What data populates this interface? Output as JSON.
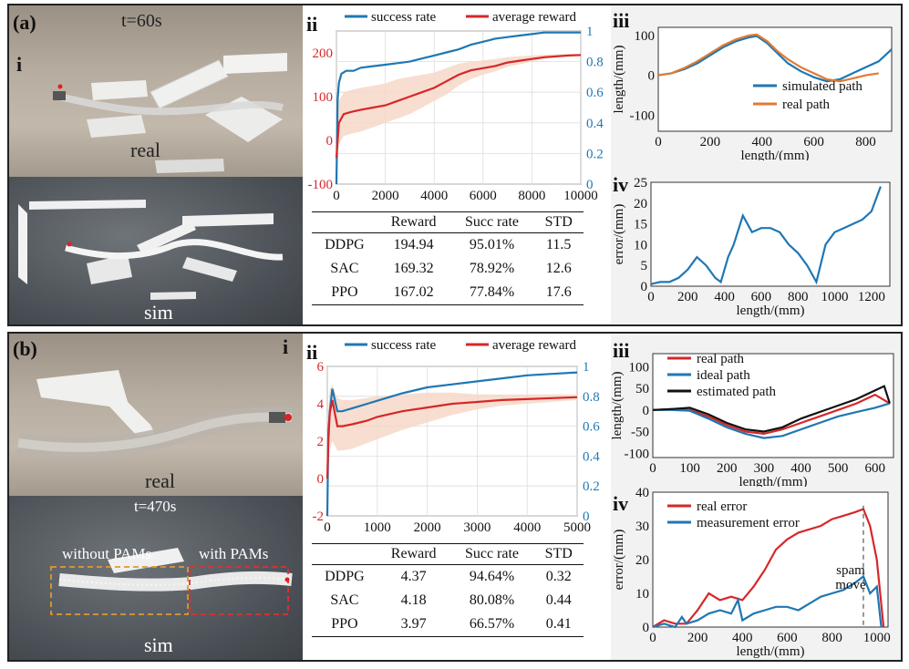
{
  "panel_a": {
    "label": "(a)",
    "time": "t=60s",
    "sub_i": "i",
    "real_label": "real",
    "sim_label": "sim",
    "sub_ii": "ii",
    "sub_iii": "iii",
    "sub_iv": "iv",
    "table": {
      "headers": [
        "",
        "Reward",
        "Succ rate",
        "STD"
      ],
      "rows": [
        [
          "DDPG",
          "194.94",
          "95.01%",
          "11.5"
        ],
        [
          "SAC",
          "169.32",
          "78.92%",
          "12.6"
        ],
        [
          "PPO",
          "167.02",
          "77.84%",
          "17.6"
        ]
      ]
    }
  },
  "panel_b": {
    "label": "(b)",
    "time": "t=470s",
    "sub_i": "i",
    "real_label": "real",
    "sim_label": "sim",
    "without_pams": "without PAMs",
    "with_pams": "with PAMs",
    "sub_ii": "ii",
    "sub_iii": "iii",
    "sub_iv": "iv",
    "table": {
      "headers": [
        "",
        "Reward",
        "Succ rate",
        "STD"
      ],
      "rows": [
        [
          "DDPG",
          "4.37",
          "94.64%",
          "0.32"
        ],
        [
          "SAC",
          "4.18",
          "80.08%",
          "0.44"
        ],
        [
          "PPO",
          "3.97",
          "66.57%",
          "0.41"
        ]
      ]
    }
  },
  "colors": {
    "blue": "#1f77b4",
    "red": "#d62728",
    "orange": "#e07b32",
    "black": "#111111",
    "band": "#f6d8c8"
  },
  "chart_data": [
    {
      "id": "a_ii",
      "type": "line",
      "title": "",
      "legend": [
        "success rate",
        "average reward"
      ],
      "xlim": [
        0,
        10000
      ],
      "xticks": [
        0,
        2000,
        4000,
        6000,
        8000,
        10000
      ],
      "ylim_left": [
        -100,
        250
      ],
      "yticks_left": [
        -100,
        0,
        100,
        200
      ],
      "ylim_right": [
        0,
        1.0
      ],
      "yticks_right": [
        0,
        0.2,
        0.4,
        0.6,
        0.8,
        1
      ],
      "series": [
        {
          "name": "success rate",
          "axis": "right",
          "x": [
            0,
            50,
            100,
            200,
            400,
            700,
            1000,
            1500,
            2000,
            2500,
            3000,
            3500,
            4000,
            4500,
            5000,
            5500,
            6000,
            6500,
            7000,
            7500,
            8000,
            8500,
            9000,
            9500,
            10000
          ],
          "y": [
            0.0,
            0.55,
            0.66,
            0.72,
            0.74,
            0.74,
            0.76,
            0.77,
            0.78,
            0.79,
            0.8,
            0.82,
            0.84,
            0.86,
            0.88,
            0.91,
            0.93,
            0.95,
            0.96,
            0.97,
            0.98,
            0.99,
            0.99,
            0.99,
            0.99
          ]
        },
        {
          "name": "average reward",
          "axis": "left",
          "x": [
            0,
            100,
            300,
            600,
            1000,
            1500,
            2000,
            2500,
            3000,
            3500,
            4000,
            4500,
            5000,
            5500,
            6000,
            6500,
            7000,
            7500,
            8000,
            8500,
            9000,
            9500,
            10000
          ],
          "y": [
            -40,
            40,
            60,
            65,
            70,
            75,
            80,
            90,
            100,
            110,
            120,
            135,
            150,
            160,
            165,
            170,
            178,
            182,
            186,
            190,
            192,
            194,
            195
          ],
          "band_low": [
            -90,
            -10,
            10,
            15,
            20,
            30,
            40,
            50,
            60,
            75,
            90,
            105,
            125,
            140,
            150,
            158,
            168,
            174,
            180,
            186,
            189,
            192,
            193
          ],
          "band_high": [
            10,
            90,
            110,
            115,
            120,
            125,
            130,
            140,
            145,
            150,
            155,
            165,
            175,
            180,
            183,
            186,
            190,
            192,
            194,
            196,
            197,
            197,
            198
          ]
        }
      ]
    },
    {
      "id": "a_iii",
      "type": "line",
      "ylabel": "length/(mm)",
      "xlabel": "length/(mm)",
      "legend": [
        "simulated path",
        "real path"
      ],
      "xlim": [
        0,
        900
      ],
      "xticks": [
        0,
        200,
        400,
        600,
        800
      ],
      "ylim": [
        -140,
        120
      ],
      "yticks": [
        -100,
        0,
        100
      ],
      "series": [
        {
          "name": "simulated path",
          "x": [
            0,
            50,
            100,
            150,
            200,
            250,
            300,
            350,
            380,
            420,
            460,
            500,
            550,
            600,
            650,
            700,
            750,
            800,
            850,
            900
          ],
          "y": [
            0,
            5,
            15,
            30,
            50,
            70,
            85,
            95,
            98,
            80,
            55,
            30,
            10,
            -5,
            -15,
            -10,
            5,
            20,
            35,
            65
          ]
        },
        {
          "name": "real path",
          "x": [
            0,
            50,
            100,
            150,
            200,
            250,
            300,
            350,
            380,
            420,
            460,
            500,
            550,
            600,
            650,
            700,
            750,
            800,
            850
          ],
          "y": [
            0,
            5,
            18,
            35,
            55,
            75,
            90,
            100,
            102,
            85,
            60,
            40,
            20,
            5,
            -10,
            -15,
            -8,
            0,
            5
          ]
        }
      ]
    },
    {
      "id": "a_iv",
      "type": "line",
      "ylabel": "error/(mm)",
      "xlabel": "length/(mm)",
      "xlim": [
        0,
        1300
      ],
      "xticks": [
        0,
        200,
        400,
        600,
        800,
        1000,
        1200
      ],
      "ylim": [
        0,
        25
      ],
      "yticks": [
        0,
        5,
        10,
        15,
        20,
        25
      ],
      "series": [
        {
          "name": "error",
          "x": [
            0,
            50,
            100,
            150,
            200,
            250,
            300,
            350,
            380,
            420,
            450,
            500,
            550,
            600,
            650,
            700,
            750,
            800,
            850,
            900,
            950,
            1000,
            1050,
            1100,
            1150,
            1200,
            1250
          ],
          "y": [
            0.5,
            1,
            1,
            2,
            4,
            7,
            5,
            2,
            1,
            7,
            10,
            17,
            13,
            14,
            14,
            13,
            10,
            8,
            5,
            1,
            10,
            13,
            14,
            15,
            16,
            18,
            24
          ]
        }
      ]
    },
    {
      "id": "b_ii",
      "type": "line",
      "legend": [
        "success rate",
        "average reward"
      ],
      "xlim": [
        0,
        5000
      ],
      "xticks": [
        0,
        1000,
        2000,
        3000,
        4000,
        5000
      ],
      "ylim_left": [
        -2,
        6
      ],
      "yticks_left": [
        -2,
        0,
        2,
        4,
        6
      ],
      "ylim_right": [
        0,
        1.0
      ],
      "yticks_right": [
        0,
        0.2,
        0.4,
        0.6,
        0.8,
        1.0
      ],
      "series": [
        {
          "name": "success rate",
          "axis": "right",
          "x": [
            0,
            20,
            50,
            100,
            200,
            300,
            500,
            800,
            1000,
            1500,
            2000,
            2500,
            3000,
            3500,
            4000,
            4500,
            5000
          ],
          "y": [
            0.0,
            0.55,
            0.7,
            0.85,
            0.7,
            0.7,
            0.72,
            0.75,
            0.77,
            0.82,
            0.86,
            0.88,
            0.9,
            0.92,
            0.94,
            0.95,
            0.96
          ]
        },
        {
          "name": "average reward",
          "axis": "left",
          "x": [
            0,
            20,
            50,
            100,
            200,
            300,
            500,
            800,
            1000,
            1500,
            2000,
            2500,
            3000,
            3500,
            4000,
            4500,
            5000
          ],
          "y": [
            0,
            2,
            3.5,
            4.2,
            2.8,
            2.8,
            2.9,
            3.1,
            3.3,
            3.6,
            3.8,
            4.0,
            4.1,
            4.2,
            4.25,
            4.3,
            4.35
          ],
          "band_low": [
            -0.5,
            0.5,
            1.5,
            2.0,
            1.5,
            1.5,
            1.6,
            1.9,
            2.1,
            2.6,
            3.0,
            3.4,
            3.7,
            3.9,
            4.0,
            4.1,
            4.2
          ],
          "band_high": [
            0.5,
            3.5,
            4.8,
            5.0,
            4.3,
            4.2,
            4.2,
            4.3,
            4.4,
            4.5,
            4.6,
            4.6,
            4.5,
            4.5,
            4.5,
            4.5,
            4.5
          ]
        }
      ]
    },
    {
      "id": "b_iii",
      "type": "line",
      "ylabel": "length/(mm)",
      "xlabel": "length/(mm)",
      "legend": [
        "real path",
        "ideal path",
        "estimated path"
      ],
      "xlim": [
        0,
        650
      ],
      "xticks": [
        0,
        100,
        200,
        300,
        400,
        500,
        600
      ],
      "ylim": [
        -110,
        130
      ],
      "yticks": [
        -100,
        -50,
        0,
        50,
        100
      ],
      "series": [
        {
          "name": "real path",
          "x": [
            0,
            50,
            100,
            150,
            200,
            250,
            300,
            350,
            400,
            450,
            500,
            550,
            600,
            640
          ],
          "y": [
            0,
            2,
            0,
            -15,
            -35,
            -50,
            -55,
            -45,
            -30,
            -15,
            0,
            15,
            35,
            15
          ]
        },
        {
          "name": "ideal path",
          "x": [
            0,
            50,
            100,
            150,
            200,
            250,
            300,
            350,
            400,
            450,
            500,
            550,
            600,
            640
          ],
          "y": [
            0,
            0,
            -2,
            -20,
            -40,
            -55,
            -65,
            -60,
            -45,
            -30,
            -15,
            -5,
            5,
            15
          ]
        },
        {
          "name": "estimated path",
          "x": [
            0,
            50,
            100,
            150,
            200,
            250,
            300,
            350,
            400,
            450,
            500,
            550,
            600,
            625,
            640
          ],
          "y": [
            0,
            2,
            5,
            -10,
            -30,
            -45,
            -50,
            -40,
            -20,
            -5,
            10,
            25,
            45,
            55,
            15
          ]
        }
      ]
    },
    {
      "id": "b_iv",
      "type": "line",
      "ylabel": "error/(mm)",
      "xlabel": "length/(mm)",
      "legend": [
        "real error",
        "measurement error"
      ],
      "annotation": "spam move",
      "xlim": [
        0,
        1050
      ],
      "xticks": [
        0,
        200,
        400,
        600,
        800,
        1000
      ],
      "ylim": [
        0,
        40
      ],
      "yticks": [
        0,
        10,
        20,
        30,
        40
      ],
      "series": [
        {
          "name": "real error",
          "x": [
            0,
            50,
            100,
            150,
            200,
            250,
            300,
            350,
            400,
            450,
            500,
            550,
            600,
            650,
            700,
            750,
            800,
            850,
            900,
            940,
            970,
            1000,
            1030
          ],
          "y": [
            0,
            2,
            1,
            1,
            5,
            10,
            8,
            9,
            8,
            12,
            17,
            23,
            26,
            28,
            29,
            30,
            32,
            33,
            34,
            35,
            30,
            20,
            0
          ]
        },
        {
          "name": "measurement error",
          "x": [
            0,
            50,
            100,
            130,
            150,
            200,
            250,
            300,
            350,
            380,
            400,
            450,
            500,
            550,
            600,
            650,
            700,
            750,
            800,
            850,
            900,
            940,
            970,
            1000,
            1020
          ],
          "y": [
            0,
            1,
            0,
            3,
            1,
            2,
            4,
            5,
            4,
            8,
            2,
            4,
            5,
            6,
            6,
            5,
            7,
            9,
            10,
            11,
            13,
            15,
            10,
            12,
            0
          ]
        }
      ]
    }
  ]
}
